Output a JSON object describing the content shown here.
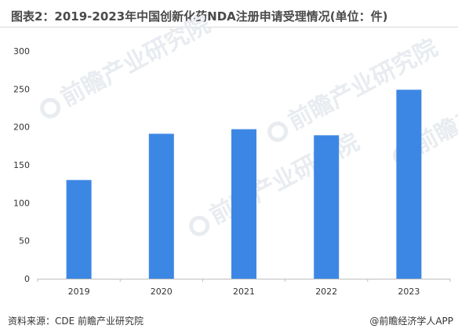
{
  "title": "图表2：2019-2023年中国创新化药NDA注册申请受理情况(单位：件)",
  "footer": {
    "source": "资料来源：CDE 前瞻产业研究院",
    "credit": "@前瞻经济学人APP"
  },
  "watermark": {
    "text": "前瞻产业研究院"
  },
  "colors": {
    "bar": "#3d87e4",
    "axis": "#bfbfbf",
    "tick_text": "#333333"
  },
  "chart_data": {
    "type": "bar",
    "title": "图表2：2019-2023年中国创新化药NDA注册申请受理情况(单位：件)",
    "categories": [
      "2019",
      "2020",
      "2021",
      "2022",
      "2023"
    ],
    "values": [
      130,
      191,
      197,
      189,
      249
    ],
    "xlabel": "",
    "ylabel": "",
    "ylim": [
      0,
      300
    ],
    "yticks": [
      0,
      50,
      100,
      150,
      200,
      250,
      300
    ],
    "grid": false,
    "legend": "none"
  }
}
